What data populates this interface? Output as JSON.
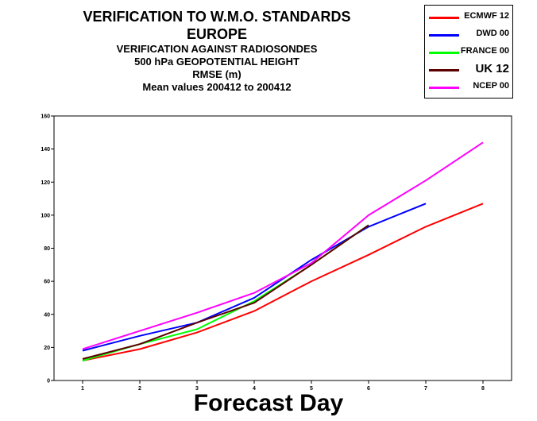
{
  "titles": [
    "VERIFICATION TO W.M.O. STANDARDS",
    "EUROPE",
    "VERIFICATION AGAINST RADIOSONDES",
    "500 hPa GEOPOTENTIAL HEIGHT",
    "RMSE (m)",
    "Mean values 200412 to 200412"
  ],
  "chart_data": {
    "type": "line",
    "title": "VERIFICATION TO W.M.O. STANDARDS",
    "xlabel": "Forecast Day",
    "ylabel": "",
    "xlim": [
      0.5,
      8.5
    ],
    "ylim": [
      0,
      160
    ],
    "xticks": [
      "1",
      "2",
      "3",
      "4",
      "5",
      "6",
      "7",
      "8"
    ],
    "yticks": [
      "0",
      "20",
      "40",
      "60",
      "80",
      "100",
      "120",
      "140",
      "160"
    ],
    "grid": false,
    "legend": "top-right, outside plot",
    "series": [
      {
        "name": "ECMWF 12",
        "color": "#ff0000",
        "x": [
          1,
          2,
          3,
          4,
          5,
          6,
          7,
          8
        ],
        "values": [
          12,
          19,
          29,
          42,
          60,
          76,
          93,
          107
        ]
      },
      {
        "name": "DWD 00",
        "color": "#0000ff",
        "x": [
          1,
          2,
          3,
          4,
          5,
          6,
          7
        ],
        "values": [
          18,
          27,
          35,
          50,
          73,
          93,
          107
        ]
      },
      {
        "name": "FRANCE 00",
        "color": "#00ff00",
        "x": [
          1,
          2,
          3,
          4,
          5,
          6
        ],
        "values": [
          12,
          22,
          31,
          48,
          70,
          94
        ]
      },
      {
        "name": "UK 12",
        "color": "#5c0000",
        "x": [
          1,
          2,
          3,
          4,
          5,
          6
        ],
        "values": [
          13,
          22,
          35,
          47,
          70,
          94
        ]
      },
      {
        "name": "NCEP 00",
        "color": "#ff00ff",
        "x": [
          1,
          2,
          3,
          4,
          5,
          6,
          7,
          8
        ],
        "values": [
          19,
          30,
          41,
          53,
          71,
          100,
          121,
          144
        ]
      }
    ]
  }
}
